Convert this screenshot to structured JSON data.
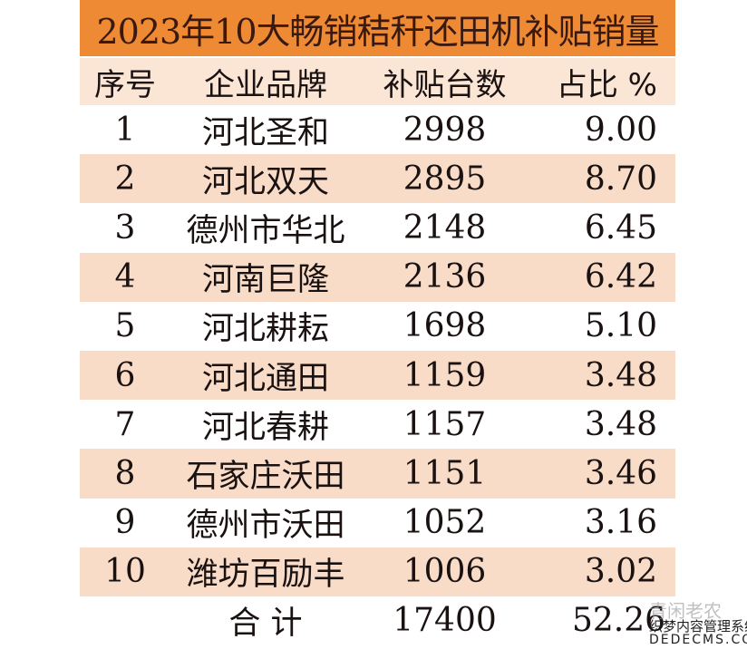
{
  "title": "2023年10大畅销秸秆还田机补贴销量",
  "columns": [
    "序号",
    "企业品牌",
    "补贴台数",
    "占比 %"
  ],
  "rows": [
    {
      "no": "1",
      "brand": "河北圣和",
      "units": "2998",
      "share": "9.00"
    },
    {
      "no": "2",
      "brand": "河北双天",
      "units": "2895",
      "share": "8.70"
    },
    {
      "no": "3",
      "brand": "德州市华北",
      "units": "2148",
      "share": "6.45"
    },
    {
      "no": "4",
      "brand": "河南巨隆",
      "units": "2136",
      "share": "6.42"
    },
    {
      "no": "5",
      "brand": "河北耕耘",
      "units": "1698",
      "share": "5.10"
    },
    {
      "no": "6",
      "brand": "河北通田",
      "units": "1159",
      "share": "3.48"
    },
    {
      "no": "7",
      "brand": "河北春耕",
      "units": "1157",
      "share": "3.48"
    },
    {
      "no": "8",
      "brand": "石家庄沃田",
      "units": "1151",
      "share": "3.46"
    },
    {
      "no": "9",
      "brand": "德州市沃田",
      "units": "1052",
      "share": "3.16"
    },
    {
      "no": "10",
      "brand": "潍坊百励丰",
      "units": "1006",
      "share": "3.02"
    }
  ],
  "total": {
    "label": "合 计",
    "units": "17400",
    "share": "52.26"
  },
  "watermark": {
    "line1": "青闲老农",
    "line2": "织梦内容管理系统",
    "line3": "DEDECMS.COM"
  },
  "colors": {
    "title_bg": "#ef8a34",
    "header_bg": "#fbe6d6",
    "alt_row_bg": "#f8dcc8"
  }
}
